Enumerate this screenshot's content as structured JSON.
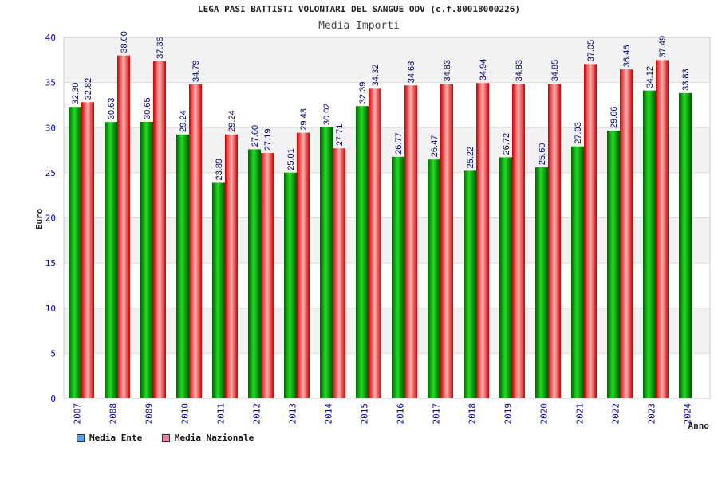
{
  "chart_data": {
    "type": "bar",
    "title": "LEGA PASI BATTISTI VOLONTARI DEL SANGUE ODV (c.f.80018000226)",
    "subtitle": "Media Importi",
    "xlabel": "Anno",
    "ylabel": "Euro",
    "ylim": [
      0,
      40
    ],
    "yticks": [
      0,
      5,
      10,
      15,
      20,
      25,
      30,
      35,
      40
    ],
    "grid": true,
    "legend_position": "bottom-left",
    "categories": [
      "2007",
      "2008",
      "2009",
      "2010",
      "2011",
      "2012",
      "2013",
      "2014",
      "2015",
      "2016",
      "2017",
      "2018",
      "2019",
      "2020",
      "2021",
      "2022",
      "2023",
      "2024"
    ],
    "series": [
      {
        "name": "Media Ente",
        "color": "#00aa00",
        "legend_color": "#5aa0e6",
        "values": [
          32.3,
          30.63,
          30.65,
          29.24,
          23.89,
          27.6,
          25.01,
          30.02,
          32.39,
          26.77,
          26.47,
          25.22,
          26.72,
          25.6,
          27.93,
          29.66,
          34.12,
          33.83
        ],
        "labels": [
          "32.30",
          "30.63",
          "30.65",
          "29.24",
          "23.89",
          "27.60",
          "25.01",
          "30.02",
          "32.39",
          "26.77",
          "26.47",
          "25.22",
          "26.72",
          "25.60",
          "27.93",
          "29.66",
          "34.12",
          "33.83"
        ]
      },
      {
        "name": "Media Nazionale",
        "color": "#ee1111",
        "legend_color": "#dd88aa",
        "values": [
          32.82,
          38.0,
          37.36,
          34.79,
          29.24,
          27.19,
          29.43,
          27.71,
          34.32,
          34.68,
          34.83,
          34.94,
          34.83,
          34.85,
          37.05,
          36.46,
          37.49,
          null
        ],
        "labels": [
          "32.82",
          "38.00",
          "37.36",
          "34.79",
          "29.24",
          "27.19",
          "29.43",
          "27.71",
          "34.32",
          "34.68",
          "34.83",
          "34.94",
          "34.83",
          "34.85",
          "37.05",
          "36.46",
          "37.49",
          ""
        ]
      }
    ]
  }
}
